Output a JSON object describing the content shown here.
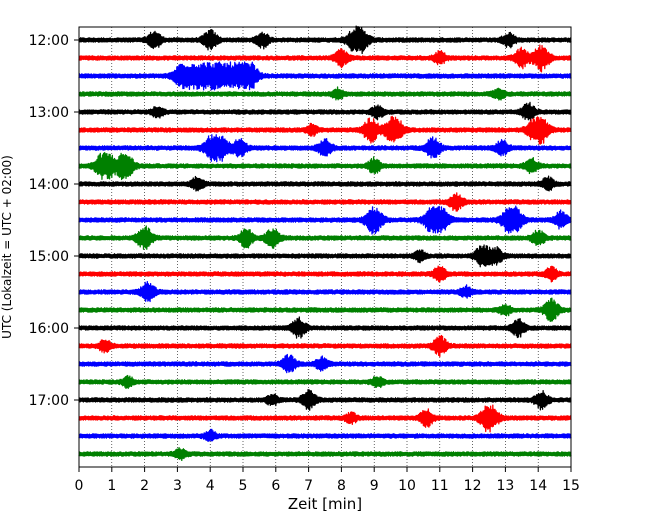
{
  "chart_data": {
    "type": "line",
    "title": "",
    "xlabel": "Zeit  [min]",
    "ylabel": "UTC (Lokalzeit = UTC + 02:00)",
    "xlim": [
      0,
      15
    ],
    "x_ticks": [
      "0",
      "1",
      "2",
      "3",
      "4",
      "5",
      "6",
      "7",
      "8",
      "9",
      "10",
      "11",
      "12",
      "13",
      "14",
      "15"
    ],
    "y_ticks": [
      "12:00",
      "13:00",
      "14:00",
      "15:00",
      "16:00",
      "17:00"
    ],
    "grid": "vertical dotted",
    "minutes_per_row": 15,
    "trace_colors": [
      "#000000",
      "#ff0000",
      "#0000ff",
      "#008000"
    ],
    "rows": [
      {
        "start": "12:00",
        "color": "#000000",
        "events": [
          [
            8.5,
            1.6
          ],
          [
            2.3,
            0.8
          ],
          [
            4.0,
            0.9
          ],
          [
            5.6,
            0.7
          ],
          [
            13.1,
            0.7
          ]
        ]
      },
      {
        "start": "12:15",
        "color": "#ff0000",
        "events": [
          [
            8.0,
            0.8
          ],
          [
            11.0,
            0.6
          ],
          [
            13.5,
            0.9
          ],
          [
            14.1,
            1.2
          ]
        ]
      },
      {
        "start": "12:30",
        "color": "#0000ff",
        "events": [
          [
            3.3,
            2.0
          ],
          [
            4.0,
            2.6
          ],
          [
            4.6,
            2.4
          ],
          [
            5.2,
            1.3
          ]
        ]
      },
      {
        "start": "12:45",
        "color": "#008000",
        "events": [
          [
            7.9,
            0.5
          ],
          [
            12.8,
            0.5
          ]
        ]
      },
      {
        "start": "13:00",
        "color": "#000000",
        "events": [
          [
            13.7,
            0.8
          ],
          [
            2.4,
            0.5
          ],
          [
            9.1,
            0.6
          ]
        ]
      },
      {
        "start": "13:15",
        "color": "#ff0000",
        "events": [
          [
            8.9,
            1.1
          ],
          [
            9.6,
            1.4
          ],
          [
            14.0,
            1.6
          ],
          [
            7.1,
            0.5
          ]
        ]
      },
      {
        "start": "13:30",
        "color": "#0000ff",
        "events": [
          [
            4.2,
            1.9
          ],
          [
            4.9,
            0.8
          ],
          [
            7.5,
            0.8
          ],
          [
            10.8,
            1.0
          ],
          [
            12.9,
            0.7
          ]
        ]
      },
      {
        "start": "13:45",
        "color": "#008000",
        "events": [
          [
            0.8,
            1.5
          ],
          [
            1.4,
            1.3
          ],
          [
            9.0,
            0.7
          ],
          [
            13.8,
            0.7
          ]
        ]
      },
      {
        "start": "14:00",
        "color": "#000000",
        "events": [
          [
            3.6,
            0.6
          ],
          [
            14.3,
            0.6
          ]
        ]
      },
      {
        "start": "14:15",
        "color": "#ff0000",
        "events": [
          [
            11.5,
            0.8
          ]
        ]
      },
      {
        "start": "14:30",
        "color": "#0000ff",
        "events": [
          [
            9.0,
            1.3
          ],
          [
            10.9,
            1.9
          ],
          [
            13.2,
            1.6
          ],
          [
            14.7,
            0.8
          ]
        ]
      },
      {
        "start": "14:45",
        "color": "#008000",
        "events": [
          [
            2.0,
            1.1
          ],
          [
            5.1,
            0.9
          ],
          [
            5.9,
            0.9
          ],
          [
            14.0,
            0.7
          ]
        ]
      },
      {
        "start": "15:00",
        "color": "#000000",
        "events": [
          [
            12.3,
            1.0
          ],
          [
            12.7,
            0.8
          ],
          [
            10.4,
            0.5
          ]
        ]
      },
      {
        "start": "15:15",
        "color": "#ff0000",
        "events": [
          [
            11.0,
            0.7
          ],
          [
            14.4,
            0.6
          ]
        ]
      },
      {
        "start": "15:30",
        "color": "#0000ff",
        "events": [
          [
            2.1,
            0.9
          ],
          [
            11.8,
            0.5
          ]
        ]
      },
      {
        "start": "15:45",
        "color": "#008000",
        "events": [
          [
            14.4,
            1.0
          ],
          [
            13.0,
            0.5
          ]
        ]
      },
      {
        "start": "16:00",
        "color": "#000000",
        "events": [
          [
            6.7,
            0.9
          ],
          [
            13.4,
            0.8
          ]
        ]
      },
      {
        "start": "16:15",
        "color": "#ff0000",
        "events": [
          [
            0.8,
            0.6
          ],
          [
            11.0,
            0.9
          ]
        ]
      },
      {
        "start": "16:30",
        "color": "#0000ff",
        "events": [
          [
            6.4,
            0.8
          ],
          [
            7.4,
            0.6
          ]
        ]
      },
      {
        "start": "16:45",
        "color": "#008000",
        "events": [
          [
            1.5,
            0.5
          ],
          [
            9.1,
            0.5
          ]
        ]
      },
      {
        "start": "17:00",
        "color": "#000000",
        "events": [
          [
            7.0,
            0.9
          ],
          [
            14.1,
            0.8
          ],
          [
            5.9,
            0.5
          ]
        ]
      },
      {
        "start": "17:15",
        "color": "#ff0000",
        "events": [
          [
            12.5,
            1.4
          ],
          [
            10.6,
            0.8
          ],
          [
            8.3,
            0.5
          ]
        ]
      },
      {
        "start": "17:30",
        "color": "#0000ff",
        "events": [
          [
            4.0,
            0.5
          ]
        ]
      },
      {
        "start": "17:45",
        "color": "#008000",
        "events": [
          [
            3.1,
            0.5
          ]
        ]
      }
    ]
  }
}
